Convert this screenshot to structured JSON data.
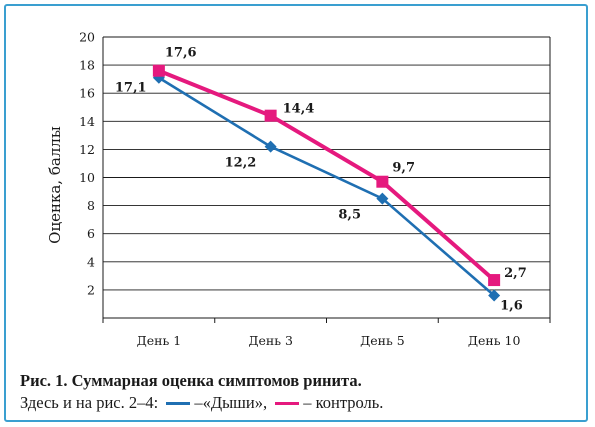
{
  "chart_data": {
    "type": "line",
    "categories": [
      "День 1",
      "День 3",
      "День 5",
      "День 10"
    ],
    "ylabel": "Оценка, баллы",
    "xlabel": "",
    "ylim": [
      0,
      20
    ],
    "yticks": [
      2,
      4,
      6,
      8,
      10,
      12,
      14,
      16,
      18,
      20
    ],
    "grid": "horizontal",
    "series": [
      {
        "name": "«Дыши»",
        "color": "#1f6fb2",
        "marker": "diamond",
        "values": [
          17.1,
          12.2,
          8.5,
          1.6
        ],
        "labels": [
          "17,1",
          "12,2",
          "8,5",
          "1,6"
        ]
      },
      {
        "name": "контроль",
        "color": "#e5197e",
        "marker": "square",
        "values": [
          17.6,
          14.4,
          9.7,
          2.7
        ],
        "labels": [
          "17,6",
          "14,4",
          "9,7",
          "2,7"
        ]
      }
    ]
  },
  "caption": {
    "title": "Рис. 1. Суммарная оценка симптомов ринита.",
    "line2_prefix": "Здесь и на рис. 2–4:",
    "legend_dash": "–",
    "legend_series1": "«Дыши»,",
    "legend_series2": "контроль."
  }
}
